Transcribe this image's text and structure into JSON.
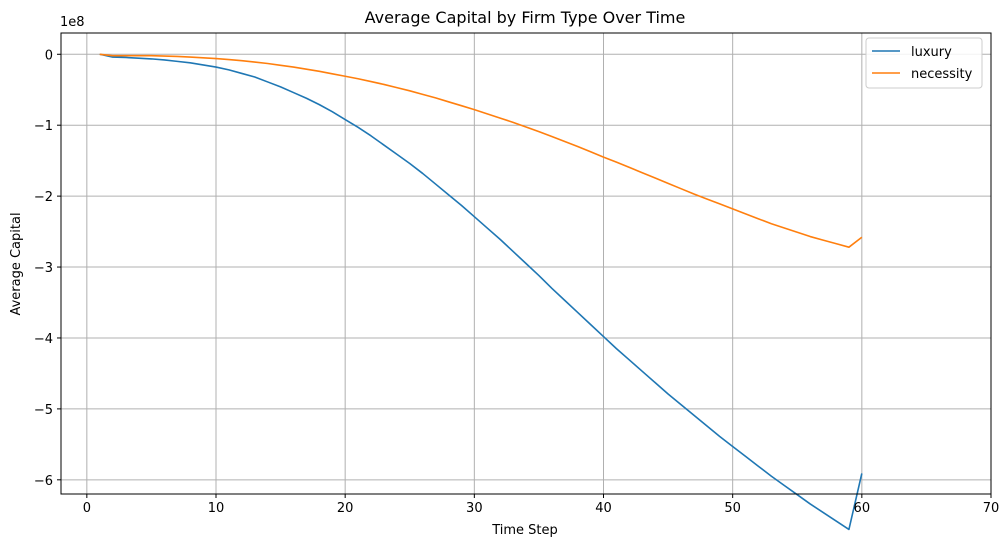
{
  "chart_data": {
    "type": "line",
    "title": "Average Capital by Firm Type Over Time",
    "xlabel": "Time Step",
    "ylabel": "Average Capital",
    "offset_label": "1e8",
    "xlim": [
      -2,
      70
    ],
    "ylim": [
      -6.2,
      0.3
    ],
    "y_scale": 100000000,
    "xticks": [
      0,
      10,
      20,
      30,
      40,
      50,
      60,
      70
    ],
    "yticks": [
      0,
      -1,
      -2,
      -3,
      -4,
      -5,
      -6
    ],
    "ytick_labels": [
      "0",
      "−1",
      "−2",
      "−3",
      "−4",
      "−5",
      "−6"
    ],
    "grid": true,
    "legend_position": "top-right",
    "x": [
      1,
      2,
      3,
      4,
      5,
      6,
      7,
      8,
      9,
      10,
      11,
      12,
      13,
      14,
      15,
      16,
      17,
      18,
      19,
      20,
      21,
      22,
      23,
      24,
      25,
      26,
      27,
      28,
      29,
      30,
      31,
      32,
      33,
      34,
      35,
      36,
      37,
      38,
      39,
      40,
      41,
      42,
      43,
      44,
      45,
      46,
      47,
      48,
      49,
      50,
      51,
      52,
      53,
      54,
      55,
      56,
      57,
      58,
      59,
      60
    ],
    "series": [
      {
        "name": "luxury",
        "color": "#1f77b4",
        "values": [
          0,
          -0.04,
          -0.045,
          -0.055,
          -0.065,
          -0.08,
          -0.1,
          -0.12,
          -0.15,
          -0.18,
          -0.22,
          -0.27,
          -0.32,
          -0.39,
          -0.46,
          -0.54,
          -0.62,
          -0.71,
          -0.81,
          -0.92,
          -1.03,
          -1.15,
          -1.28,
          -1.41,
          -1.54,
          -1.68,
          -1.83,
          -1.98,
          -2.13,
          -2.29,
          -2.45,
          -2.61,
          -2.78,
          -2.95,
          -3.12,
          -3.3,
          -3.47,
          -3.64,
          -3.81,
          -3.98,
          -4.15,
          -4.31,
          -4.47,
          -4.63,
          -4.79,
          -4.94,
          -5.09,
          -5.24,
          -5.39,
          -5.53,
          -5.67,
          -5.81,
          -5.95,
          -6.08,
          -6.21,
          -6.34,
          -6.46,
          -6.58,
          -6.7,
          -5.91
        ]
      },
      {
        "name": "necessity",
        "color": "#ff7f0e",
        "values": [
          0,
          -0.02,
          -0.02,
          -0.02,
          -0.02,
          -0.025,
          -0.03,
          -0.04,
          -0.05,
          -0.06,
          -0.075,
          -0.09,
          -0.11,
          -0.13,
          -0.155,
          -0.18,
          -0.21,
          -0.24,
          -0.275,
          -0.31,
          -0.345,
          -0.385,
          -0.425,
          -0.47,
          -0.515,
          -0.565,
          -0.615,
          -0.67,
          -0.725,
          -0.78,
          -0.84,
          -0.9,
          -0.96,
          -1.025,
          -1.09,
          -1.16,
          -1.23,
          -1.3,
          -1.375,
          -1.45,
          -1.52,
          -1.595,
          -1.67,
          -1.745,
          -1.82,
          -1.895,
          -1.97,
          -2.04,
          -2.11,
          -2.18,
          -2.25,
          -2.32,
          -2.39,
          -2.45,
          -2.51,
          -2.57,
          -2.62,
          -2.67,
          -2.72,
          -2.58
        ]
      }
    ]
  }
}
